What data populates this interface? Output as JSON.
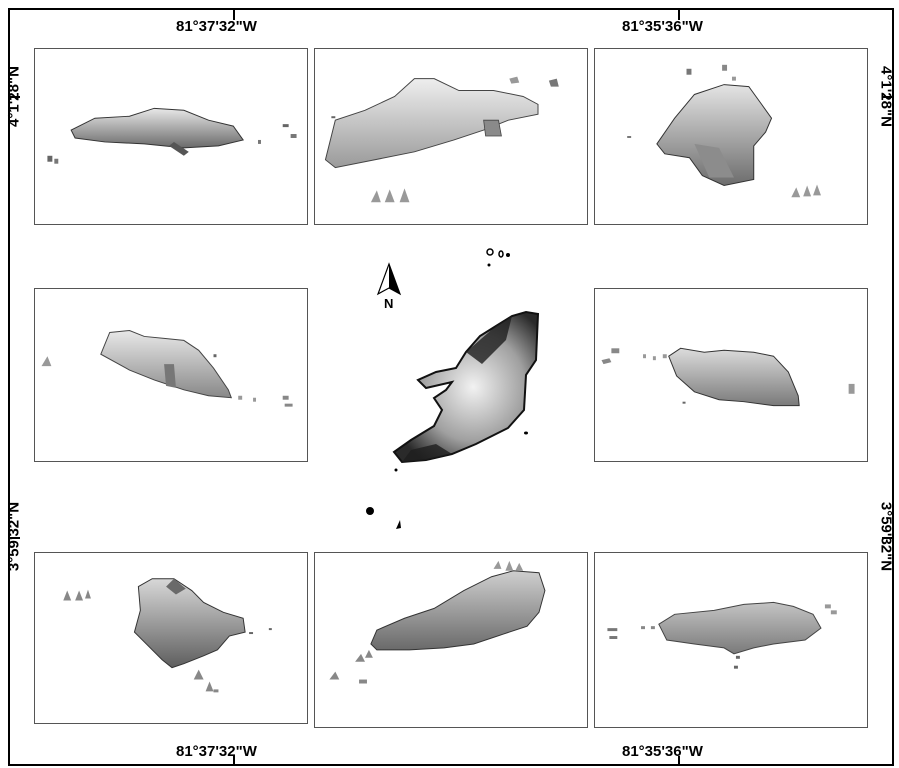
{
  "coords": {
    "top_left_lon": "81°37'32\"W",
    "top_right_lon": "81°35'36\"W",
    "bottom_left_lon": "81°37'32\"W",
    "bottom_right_lon": "81°35'36\"W",
    "left_top_lat": "4°1'28\"N",
    "left_bottom_lat": "3°59'32\"N",
    "right_top_lat": "4°1'28\"N",
    "right_bottom_lat": "3°59'32\"N"
  },
  "north_arrow": {
    "label": "N"
  },
  "colors": {
    "frame": "#000000",
    "panel_border": "#555555",
    "relief_light": "#e4e4e4",
    "relief_mid": "#a8a8a8",
    "relief_dark": "#4a4a4a"
  },
  "panels": [
    {
      "name": "view-top-left"
    },
    {
      "name": "view-top-center"
    },
    {
      "name": "view-top-right"
    },
    {
      "name": "view-middle-left"
    },
    {
      "name": "view-middle-right"
    },
    {
      "name": "view-bottom-left"
    },
    {
      "name": "view-bottom-center"
    },
    {
      "name": "view-bottom-right"
    }
  ]
}
